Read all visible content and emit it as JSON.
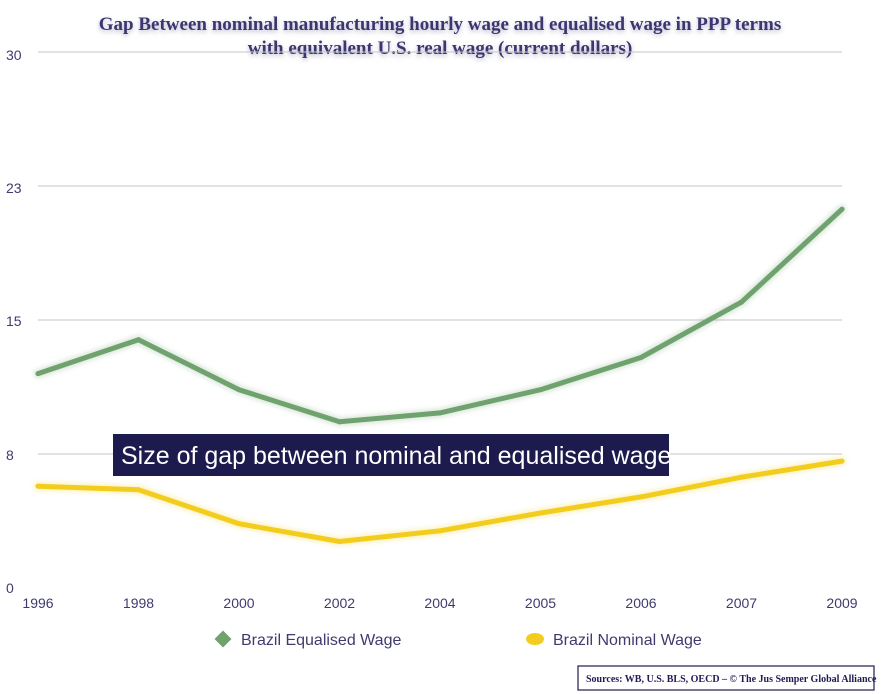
{
  "chart_data": {
    "type": "line",
    "title": "Gap Between nominal manufacturing hourly wage and equalised wage in PPP terms",
    "subtitle": "with equivalent U.S. real wage (current dollars)",
    "categories": [
      "1996",
      "1998",
      "2000",
      "2002",
      "2004",
      "2005",
      "2006",
      "2007",
      "2009"
    ],
    "y_ticks": [
      "0",
      "8",
      "15",
      "23",
      "30"
    ],
    "ylim": [
      0,
      30
    ],
    "grid": true,
    "legend_position": "bottom",
    "series": [
      {
        "name": "Brazil Equalised Wage",
        "color": "#6fa26f",
        "marker": "diamond",
        "values": [
          12.0,
          13.9,
          11.1,
          9.3,
          9.8,
          11.1,
          12.9,
          16.0,
          21.2
        ]
      },
      {
        "name": "Brazil Nominal Wage",
        "color": "#f3cd1d",
        "marker": "circle",
        "values": [
          5.7,
          5.5,
          3.6,
          2.6,
          3.2,
          4.2,
          5.1,
          6.2,
          7.1
        ]
      }
    ],
    "annotation": "Size of gap between nominal and equalised wage",
    "source": "Sources: WB, U.S. BLS, OECD – © The Jus Semper Global Alliance"
  },
  "colors": {
    "title": "#3b3670",
    "tick": "#3f3b6e",
    "grid": "#c6c6c6",
    "annotation_bg": "#1d1a4d",
    "source_border": "#1d1a4d"
  }
}
